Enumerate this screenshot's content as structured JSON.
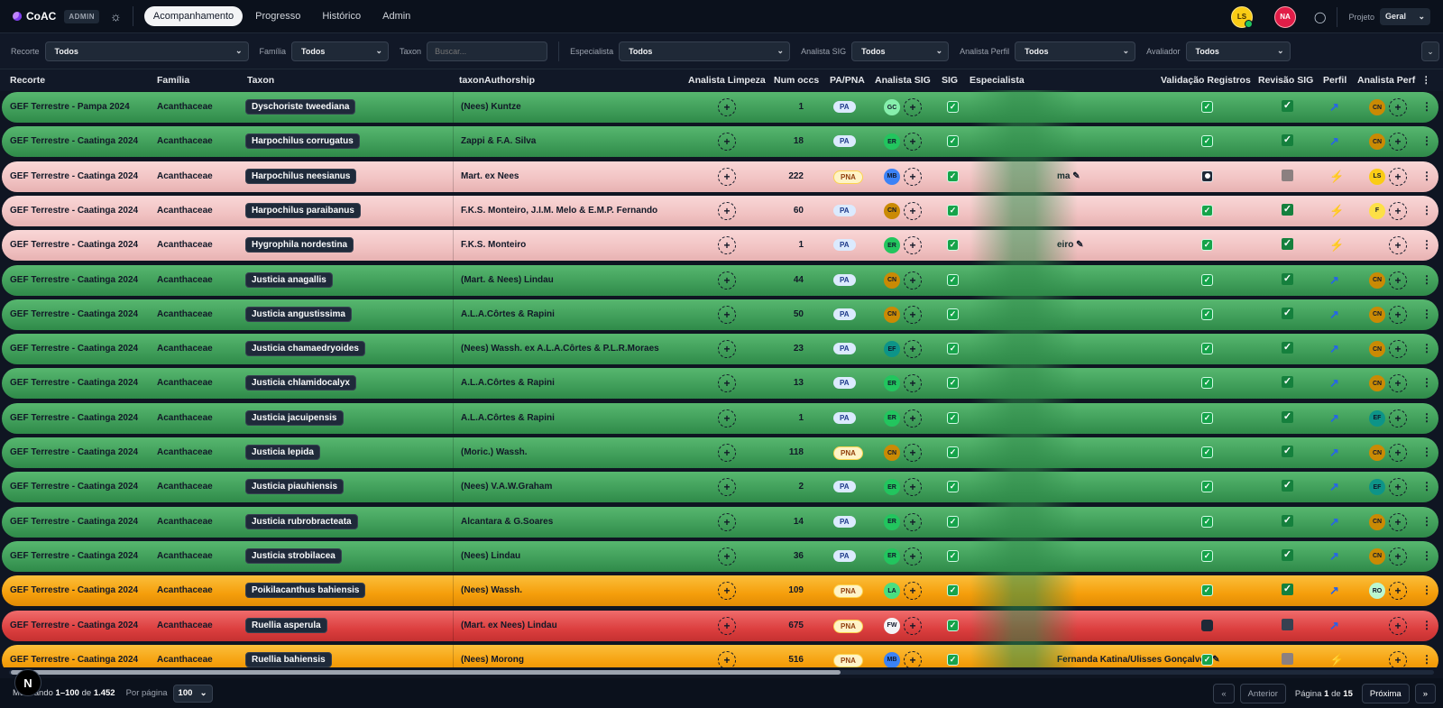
{
  "app": {
    "name": "CoAC",
    "badge": "ADMIN"
  },
  "nav": [
    {
      "label": "Acompanhamento",
      "active": true
    },
    {
      "label": "Progresso",
      "active": false
    },
    {
      "label": "Histórico",
      "active": false
    },
    {
      "label": "Admin",
      "active": false
    }
  ],
  "users": [
    {
      "initials": "LS",
      "color": "#facc15"
    },
    {
      "initials": "NA",
      "color": "#e11d48"
    }
  ],
  "project": {
    "label": "Projeto",
    "value": "Geral"
  },
  "filters": {
    "recorte": {
      "label": "Recorte",
      "value": "Todos"
    },
    "familia": {
      "label": "Família",
      "value": "Todos"
    },
    "taxon": {
      "label": "Taxon",
      "placeholder": "Buscar..."
    },
    "especialista": {
      "label": "Especialista",
      "value": "Todos"
    },
    "analista_sig": {
      "label": "Analista SIG",
      "value": "Todos"
    },
    "analista_perfil": {
      "label": "Analista Perfil",
      "value": "Todos"
    },
    "avaliador": {
      "label": "Avaliador",
      "value": "Todos"
    }
  },
  "columns": {
    "recorte": "Recorte",
    "familia": "Família",
    "taxon": "Taxon",
    "author": "taxonAuthorship",
    "limpeza": "Analista Limpeza",
    "num": "Num occs",
    "papna": "PA/PNA",
    "sig_analyst": "Analista SIG",
    "sig": "SIG",
    "especialista": "Especialista",
    "validacao": "Validação Registros",
    "revisao": "Revisão SIG",
    "perfil": "Perfil",
    "analista_perfil": "Analista Perf",
    "kebab": "⋮"
  },
  "rows": [
    {
      "recorte": "GEF Terrestre - Pampa 2024",
      "familia": "Acanthaceae",
      "taxon": "Dyschoriste tweediana",
      "author": "(Nees) Kuntze",
      "num": "1",
      "papna": "PA",
      "sig_av": "GC",
      "sig_color": "#86efac",
      "esp": "",
      "val": "check",
      "rev": "check",
      "perfil": "link",
      "aav": "CN",
      "aav_color": "#ca8a04",
      "status": "green"
    },
    {
      "recorte": "GEF Terrestre - Caatinga 2024",
      "familia": "Acanthaceae",
      "taxon": "Harpochilus corrugatus",
      "author": "Zappi & F.A. Silva",
      "num": "18",
      "papna": "PA",
      "sig_av": "ER",
      "sig_color": "#22c55e",
      "esp": "",
      "val": "check",
      "rev": "check",
      "perfil": "link",
      "aav": "CN",
      "aav_color": "#ca8a04",
      "status": "green"
    },
    {
      "recorte": "GEF Terrestre - Caatinga 2024",
      "familia": "Acanthaceae",
      "taxon": "Harpochilus neesianus",
      "author": "Mart. ex Nees",
      "num": "222",
      "papna": "PNA",
      "sig_av": "MB",
      "sig_color": "#3b82f6",
      "esp": "ma ✎",
      "val": "dot",
      "rev": "grey",
      "perfil": "bolt",
      "aav": "LS",
      "aav_color": "#facc15",
      "status": "pink"
    },
    {
      "recorte": "GEF Terrestre - Caatinga 2024",
      "familia": "Acanthaceae",
      "taxon": "Harpochilus paraibanus",
      "author": "F.K.S. Monteiro, J.I.M. Melo & E.M.P. Fernando",
      "num": "60",
      "papna": "PA",
      "sig_av": "CN",
      "sig_color": "#ca8a04",
      "esp": "",
      "val": "check",
      "rev": "check",
      "perfil": "bolt",
      "aav": "F",
      "aav_color": "#fde047",
      "status": "pink"
    },
    {
      "recorte": "GEF Terrestre - Caatinga 2024",
      "familia": "Acanthaceae",
      "taxon": "Hygrophila nordestina",
      "author": "F.K.S. Monteiro",
      "num": "1",
      "papna": "PA",
      "sig_av": "ER",
      "sig_color": "#22c55e",
      "esp": "eiro ✎",
      "val": "check",
      "rev": "check",
      "perfil": "bolt",
      "aav": "",
      "aav_color": "",
      "status": "pink"
    },
    {
      "recorte": "GEF Terrestre - Caatinga 2024",
      "familia": "Acanthaceae",
      "taxon": "Justicia anagallis",
      "author": "(Mart. & Nees) Lindau",
      "num": "44",
      "papna": "PA",
      "sig_av": "CN",
      "sig_color": "#ca8a04",
      "esp": "",
      "val": "check",
      "rev": "check",
      "perfil": "link",
      "aav": "CN",
      "aav_color": "#ca8a04",
      "status": "green"
    },
    {
      "recorte": "GEF Terrestre - Caatinga 2024",
      "familia": "Acanthaceae",
      "taxon": "Justicia angustissima",
      "author": "A.L.A.Côrtes & Rapini",
      "num": "50",
      "papna": "PA",
      "sig_av": "CN",
      "sig_color": "#ca8a04",
      "esp": "",
      "val": "check",
      "rev": "check",
      "perfil": "link",
      "aav": "CN",
      "aav_color": "#ca8a04",
      "status": "green"
    },
    {
      "recorte": "GEF Terrestre - Caatinga 2024",
      "familia": "Acanthaceae",
      "taxon": "Justicia chamaedryoides",
      "author": "(Nees) Wassh. ex A.L.A.Côrtes & P.L.R.Moraes",
      "num": "23",
      "papna": "PA",
      "sig_av": "EF",
      "sig_color": "#0d9488",
      "esp": "",
      "val": "check",
      "rev": "check",
      "perfil": "link",
      "aav": "CN",
      "aav_color": "#ca8a04",
      "status": "green"
    },
    {
      "recorte": "GEF Terrestre - Caatinga 2024",
      "familia": "Acanthaceae",
      "taxon": "Justicia chlamidocalyx",
      "author": "A.L.A.Côrtes & Rapini",
      "num": "13",
      "papna": "PA",
      "sig_av": "ER",
      "sig_color": "#22c55e",
      "esp": "",
      "val": "check",
      "rev": "check",
      "perfil": "link",
      "aav": "CN",
      "aav_color": "#ca8a04",
      "status": "green"
    },
    {
      "recorte": "GEF Terrestre - Caatinga 2024",
      "familia": "Acanthaceae",
      "taxon": "Justicia jacuipensis",
      "author": "A.L.A.Côrtes & Rapini",
      "num": "1",
      "papna": "PA",
      "sig_av": "ER",
      "sig_color": "#22c55e",
      "esp": "",
      "val": "check",
      "rev": "check",
      "perfil": "link",
      "aav": "EF",
      "aav_color": "#0d9488",
      "status": "green"
    },
    {
      "recorte": "GEF Terrestre - Caatinga 2024",
      "familia": "Acanthaceae",
      "taxon": "Justicia lepida",
      "author": "(Moric.) Wassh.",
      "num": "118",
      "papna": "PNA",
      "sig_av": "CN",
      "sig_color": "#ca8a04",
      "esp": "",
      "val": "check",
      "rev": "check",
      "perfil": "link",
      "aav": "CN",
      "aav_color": "#ca8a04",
      "status": "green"
    },
    {
      "recorte": "GEF Terrestre - Caatinga 2024",
      "familia": "Acanthaceae",
      "taxon": "Justicia piauhiensis",
      "author": "(Nees) V.A.W.Graham",
      "num": "2",
      "papna": "PA",
      "sig_av": "ER",
      "sig_color": "#22c55e",
      "esp": "",
      "val": "check",
      "rev": "check",
      "perfil": "link",
      "aav": "EF",
      "aav_color": "#0d9488",
      "status": "green"
    },
    {
      "recorte": "GEF Terrestre - Caatinga 2024",
      "familia": "Acanthaceae",
      "taxon": "Justicia rubrobracteata",
      "author": "Alcantara & G.Soares",
      "num": "14",
      "papna": "PA",
      "sig_av": "ER",
      "sig_color": "#22c55e",
      "esp": "",
      "val": "check",
      "rev": "check",
      "perfil": "link",
      "aav": "CN",
      "aav_color": "#ca8a04",
      "status": "green"
    },
    {
      "recorte": "GEF Terrestre - Caatinga 2024",
      "familia": "Acanthaceae",
      "taxon": "Justicia strobilacea",
      "author": "(Nees) Lindau",
      "num": "36",
      "papna": "PA",
      "sig_av": "ER",
      "sig_color": "#22c55e",
      "esp": "",
      "val": "check",
      "rev": "check",
      "perfil": "link",
      "aav": "CN",
      "aav_color": "#ca8a04",
      "status": "green"
    },
    {
      "recorte": "GEF Terrestre - Caatinga 2024",
      "familia": "Acanthaceae",
      "taxon": "Poikilacanthus bahiensis",
      "author": "(Nees) Wassh.",
      "num": "109",
      "papna": "PNA",
      "sig_av": "LA",
      "sig_color": "#4ade80",
      "esp": "",
      "val": "check",
      "rev": "check",
      "perfil": "link",
      "aav": "RO",
      "aav_color": "#bbf7d0",
      "status": "orange"
    },
    {
      "recorte": "GEF Terrestre - Caatinga 2024",
      "familia": "Acanthaceae",
      "taxon": "Ruellia asperula",
      "author": "(Mart. ex Nees) Lindau",
      "num": "675",
      "papna": "PNA",
      "sig_av": "FW",
      "sig_color": "#f3f4f6",
      "esp": "",
      "val": "dark",
      "rev": "dark",
      "perfil": "link",
      "aav": "",
      "aav_color": "",
      "status": "red"
    },
    {
      "recorte": "GEF Terrestre - Caatinga 2024",
      "familia": "Acanthaceae",
      "taxon": "Ruellia bahiensis",
      "author": "(Nees) Morong",
      "num": "516",
      "papna": "PNA",
      "sig_av": "MB",
      "sig_color": "#3b82f6",
      "esp": "Fernanda Katina/Ulisses Gonçalves ✎",
      "val": "check",
      "rev": "grey",
      "perfil": "bolt",
      "aav": "",
      "aav_color": "",
      "status": "orange"
    }
  ],
  "footer": {
    "showing_prefix": "Mostrando",
    "range": "1–100",
    "of_label": "de",
    "total": "1.452",
    "per_page_label": "Por página",
    "per_page_value": "100",
    "first": "«",
    "prev": "Anterior",
    "page_prefix": "Página",
    "page": "1",
    "page_of": "de",
    "pages": "15",
    "next": "Próxima",
    "last": "»"
  },
  "dev_badge": "N"
}
